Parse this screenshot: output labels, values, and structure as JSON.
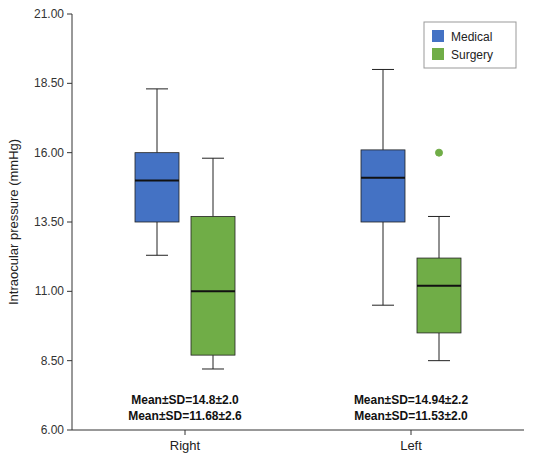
{
  "chart_data": {
    "type": "box",
    "ylabel": "Intraocular pressure (mmHg)",
    "categories": [
      "Right",
      "Left"
    ],
    "ylim": [
      6.0,
      21.0
    ],
    "yticks": [
      {
        "value": 6.0,
        "label": "6.00"
      },
      {
        "value": 8.5,
        "label": "8.50"
      },
      {
        "value": 11.0,
        "label": "11.00"
      },
      {
        "value": 13.5,
        "label": "13.50"
      },
      {
        "value": 16.0,
        "label": "16.00"
      },
      {
        "value": 18.5,
        "label": "18.50"
      },
      {
        "value": 21.0,
        "label": "21.00"
      }
    ],
    "grid": false,
    "legend": "upper right",
    "series": [
      {
        "name": "Medical",
        "color": "#4472c4",
        "boxes": [
          {
            "whislo": 12.3,
            "q1": 13.5,
            "med": 15.0,
            "q3": 16.0,
            "whishi": 18.3,
            "outliers": []
          },
          {
            "whislo": 10.5,
            "q1": 13.5,
            "med": 15.1,
            "q3": 16.1,
            "whishi": 19.0,
            "outliers": []
          }
        ],
        "annotations": [
          "Mean±SD=14.8±2.0",
          "Mean±SD=14.94±2.2"
        ]
      },
      {
        "name": "Surgery",
        "color": "#70ad47",
        "boxes": [
          {
            "whislo": 8.2,
            "q1": 8.7,
            "med": 11.0,
            "q3": 13.7,
            "whishi": 15.8,
            "outliers": []
          },
          {
            "whislo": 8.5,
            "q1": 9.5,
            "med": 11.2,
            "q3": 12.2,
            "whishi": 13.7,
            "outliers": [
              16.0
            ]
          }
        ],
        "annotations": [
          "Mean±SD=11.68±2.6",
          "Mean±SD=11.53±2.0"
        ]
      }
    ]
  }
}
